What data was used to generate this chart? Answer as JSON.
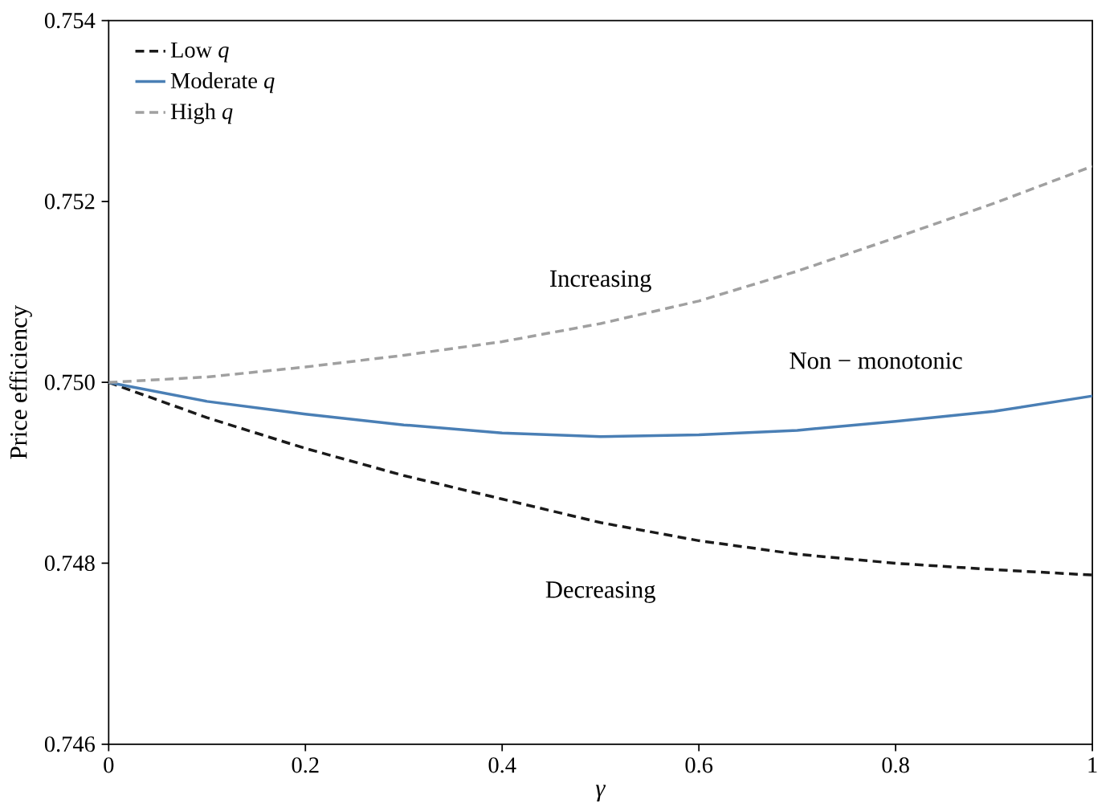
{
  "chart_data": {
    "type": "line",
    "xlabel": "*γ*",
    "ylabel": "Price efficiency",
    "xlim": [
      0,
      1
    ],
    "ylim": [
      0.746,
      0.754
    ],
    "xticks": [
      0,
      0.2,
      0.4,
      0.6,
      0.8,
      1
    ],
    "yticks": [
      {
        "value": 0.746,
        "label": "0.746"
      },
      {
        "value": 0.748,
        "label": "0.748"
      },
      {
        "value": 0.75,
        "label": "0.750"
      },
      {
        "value": 0.752,
        "label": "0.752"
      },
      {
        "value": 0.754,
        "label": "0.754"
      }
    ],
    "legend": "top left",
    "grid": false,
    "marker": "none",
    "series": [
      {
        "name": "Low *q*",
        "color": "#1a1a1a",
        "line_style": "dashed",
        "x": [
          0,
          0.1,
          0.2,
          0.3,
          0.4,
          0.5,
          0.6,
          0.7,
          0.8,
          0.9,
          1
        ],
        "values": [
          0.75,
          0.74961,
          0.74927,
          0.74897,
          0.74871,
          0.74845,
          0.74825,
          0.7481,
          0.748,
          0.74793,
          0.74787
        ]
      },
      {
        "name": "Moderate *q*",
        "color": "#4a7fb5",
        "line_style": "solid",
        "x": [
          0,
          0.1,
          0.2,
          0.3,
          0.4,
          0.5,
          0.6,
          0.7,
          0.8,
          0.9,
          1
        ],
        "values": [
          0.75,
          0.74979,
          0.74965,
          0.74953,
          0.74944,
          0.7494,
          0.74942,
          0.74947,
          0.74957,
          0.74968,
          0.74985
        ]
      },
      {
        "name": "High *q*",
        "color": "#a0a0a0",
        "line_style": "dashed",
        "x": [
          0,
          0.1,
          0.2,
          0.3,
          0.4,
          0.5,
          0.6,
          0.7,
          0.8,
          0.9,
          1
        ],
        "values": [
          0.75,
          0.75006,
          0.75017,
          0.7503,
          0.75045,
          0.75065,
          0.7509,
          0.75123,
          0.7516,
          0.75198,
          0.75239
        ]
      }
    ],
    "annotations": [
      "Increasing",
      "Non − monotonic",
      "Decreasing"
    ]
  }
}
